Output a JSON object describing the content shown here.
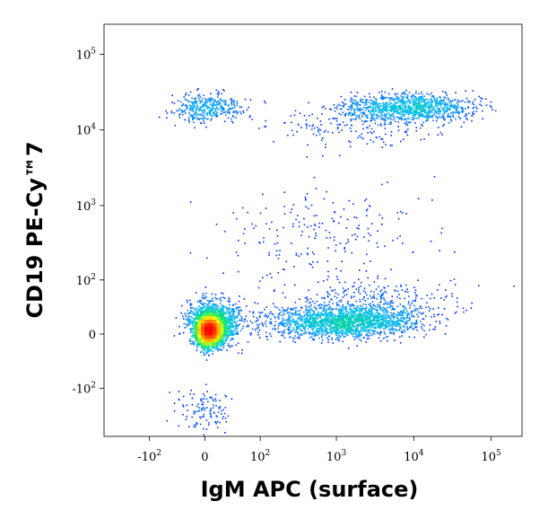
{
  "chart_data": {
    "type": "scatter",
    "style": "density-colored flow cytometry dot plot",
    "xlabel": "IgM APC (surface)",
    "ylabel": "CD19 PE-Cy™7",
    "x_scale": "biexponential",
    "y_scale": "biexponential",
    "x_ticks": [
      {
        "value": -100,
        "base": "-10",
        "exp": "2"
      },
      {
        "value": 0,
        "base": "0",
        "exp": ""
      },
      {
        "value": 100,
        "base": "10",
        "exp": "2"
      },
      {
        "value": 1000,
        "base": "10",
        "exp": "3"
      },
      {
        "value": 10000,
        "base": "10",
        "exp": "4"
      },
      {
        "value": 100000,
        "base": "10",
        "exp": "5"
      }
    ],
    "y_ticks": [
      {
        "value": -100,
        "base": "-10",
        "exp": "2"
      },
      {
        "value": 0,
        "base": "0",
        "exp": ""
      },
      {
        "value": 100,
        "base": "10",
        "exp": "2"
      },
      {
        "value": 1000,
        "base": "10",
        "exp": "3"
      },
      {
        "value": 10000,
        "base": "10",
        "exp": "4"
      },
      {
        "value": 100000,
        "base": "10",
        "exp": "5"
      }
    ],
    "xlim": [
      -400,
      250000
    ],
    "ylim": [
      -450,
      250000
    ],
    "grid": false,
    "legend": "none",
    "populations": [
      {
        "name_hint": "CD19- IgM- (dense core)",
        "x_center": 0,
        "y_center": 0,
        "x_spread": "narrow",
        "y_spread": "narrow",
        "density": "very high"
      },
      {
        "name_hint": "CD19- IgM+ tail",
        "x_center": 2000,
        "y_center": 20,
        "x_range": [
          100,
          30000
        ],
        "density": "medium"
      },
      {
        "name_hint": "CD19+ IgM-",
        "x_center": 0,
        "y_center": 20000,
        "density": "low"
      },
      {
        "name_hint": "CD19+ IgM+",
        "x_center": 8000,
        "y_center": 20000,
        "x_range": [
          1000,
          60000
        ],
        "density": "medium"
      }
    ],
    "colormap": [
      "#0000ff",
      "#00b4ff",
      "#00e676",
      "#ffff00",
      "#ff8000",
      "#ff0000"
    ]
  }
}
